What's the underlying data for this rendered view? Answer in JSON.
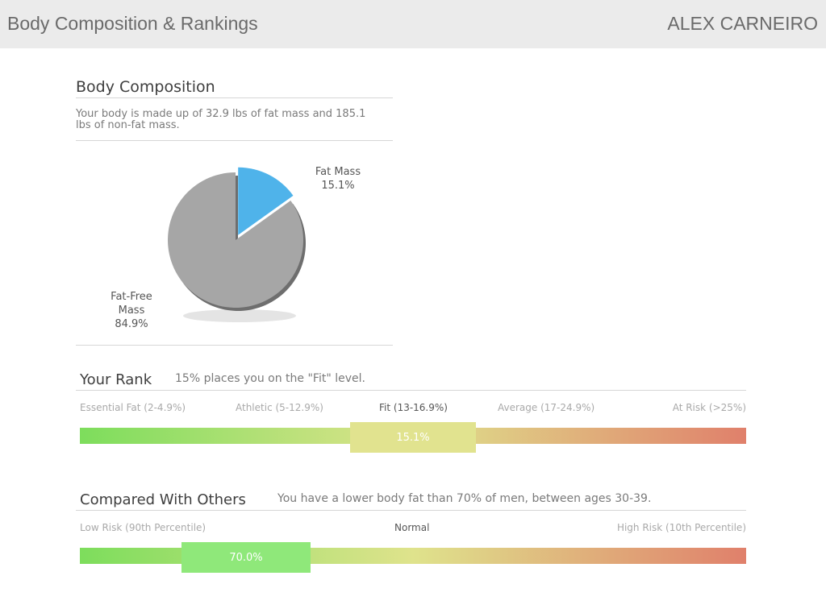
{
  "header": {
    "title": "Body Composition & Rankings",
    "user": "ALEX CARNEIRO"
  },
  "body_composition": {
    "title": "Body Composition",
    "description_line1": "Your body is made up of 32.9 lbs of fat mass and 185.1",
    "description_line2": "lbs of non-fat mass."
  },
  "chart_data": [
    {
      "type": "pie",
      "title": "",
      "slices": [
        {
          "label": "Fat Mass",
          "value": 15.1,
          "value_label": "15.1%",
          "color": "#4fb3ea"
        },
        {
          "label_line1": "Fat-Free",
          "label_line2": "Mass",
          "value": 84.9,
          "value_label": "84.9%",
          "color": "#a6a6a6"
        }
      ]
    },
    {
      "type": "bar",
      "title": "Your Rank",
      "subtitle": "15% places you on the \"Fit\" level.",
      "categories": [
        "Essential Fat (2-4.9%)",
        "Athletic (5-12.9%)",
        "Fit (13-16.9%)",
        "Average (17-24.9%)",
        "At Risk (>25%)"
      ],
      "active_category": "Fit (13-16.9%)",
      "marker_label": "15.1%",
      "marker_value": 15.1,
      "scale_start_color": "#7ddd5c",
      "scale_mid_color": "#dfe38c",
      "scale_end_color": "#e0806b"
    },
    {
      "type": "bar",
      "title": "Compared With Others",
      "subtitle": "You have a lower body fat than 70% of men, between ages 30-39.",
      "categories": [
        "Low Risk (90th Percentile)",
        "Normal",
        "High Risk (10th Percentile)"
      ],
      "active_category": "Normal",
      "marker_label": "70.0%",
      "marker_value": 70.0,
      "scale_start_color": "#7ddd5c",
      "scale_mid_color": "#dfe38c",
      "scale_end_color": "#e0806b"
    }
  ]
}
